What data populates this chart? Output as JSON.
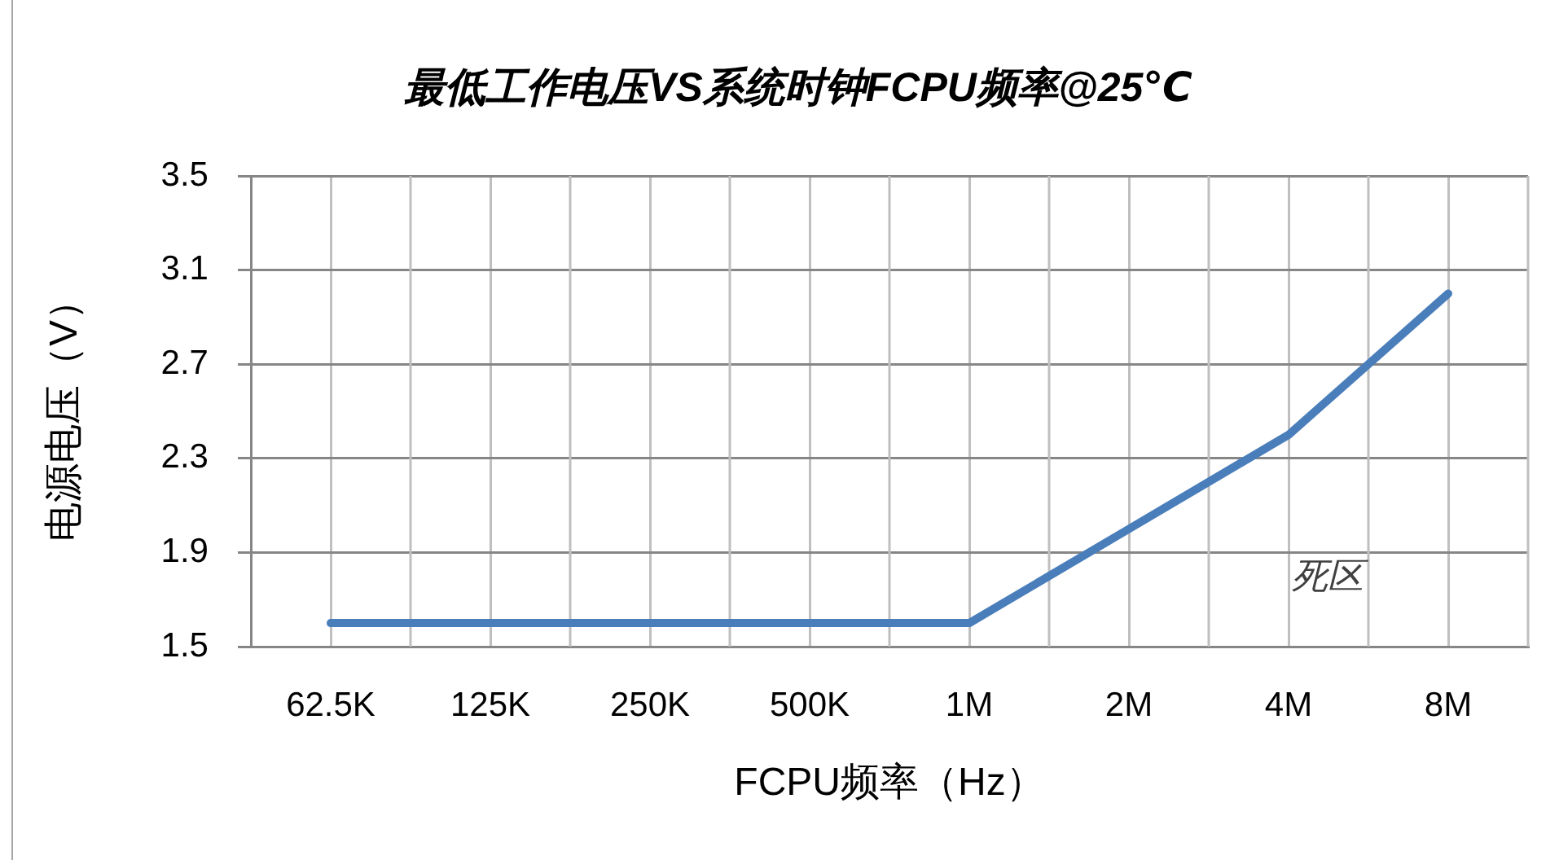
{
  "chart_data": {
    "type": "line",
    "title": "最低工作电压VS系统时钟FCPU频率@25℃",
    "xlabel": "FCPU频率（Hz）",
    "ylabel": "电源电压（V）",
    "categories": [
      "62.5K",
      "125K",
      "250K",
      "500K",
      "1M",
      "2M",
      "4M",
      "8M"
    ],
    "values": [
      1.6,
      1.6,
      1.6,
      1.6,
      1.6,
      2.0,
      2.4,
      3.0
    ],
    "color": "#4a7ebb",
    "ylim": [
      1.5,
      3.5
    ],
    "yticks": [
      1.5,
      1.9,
      2.3,
      2.7,
      3.1,
      3.5
    ],
    "grid": true,
    "marker": "none",
    "line_style": "solid",
    "annotations": [
      "死区"
    ]
  }
}
